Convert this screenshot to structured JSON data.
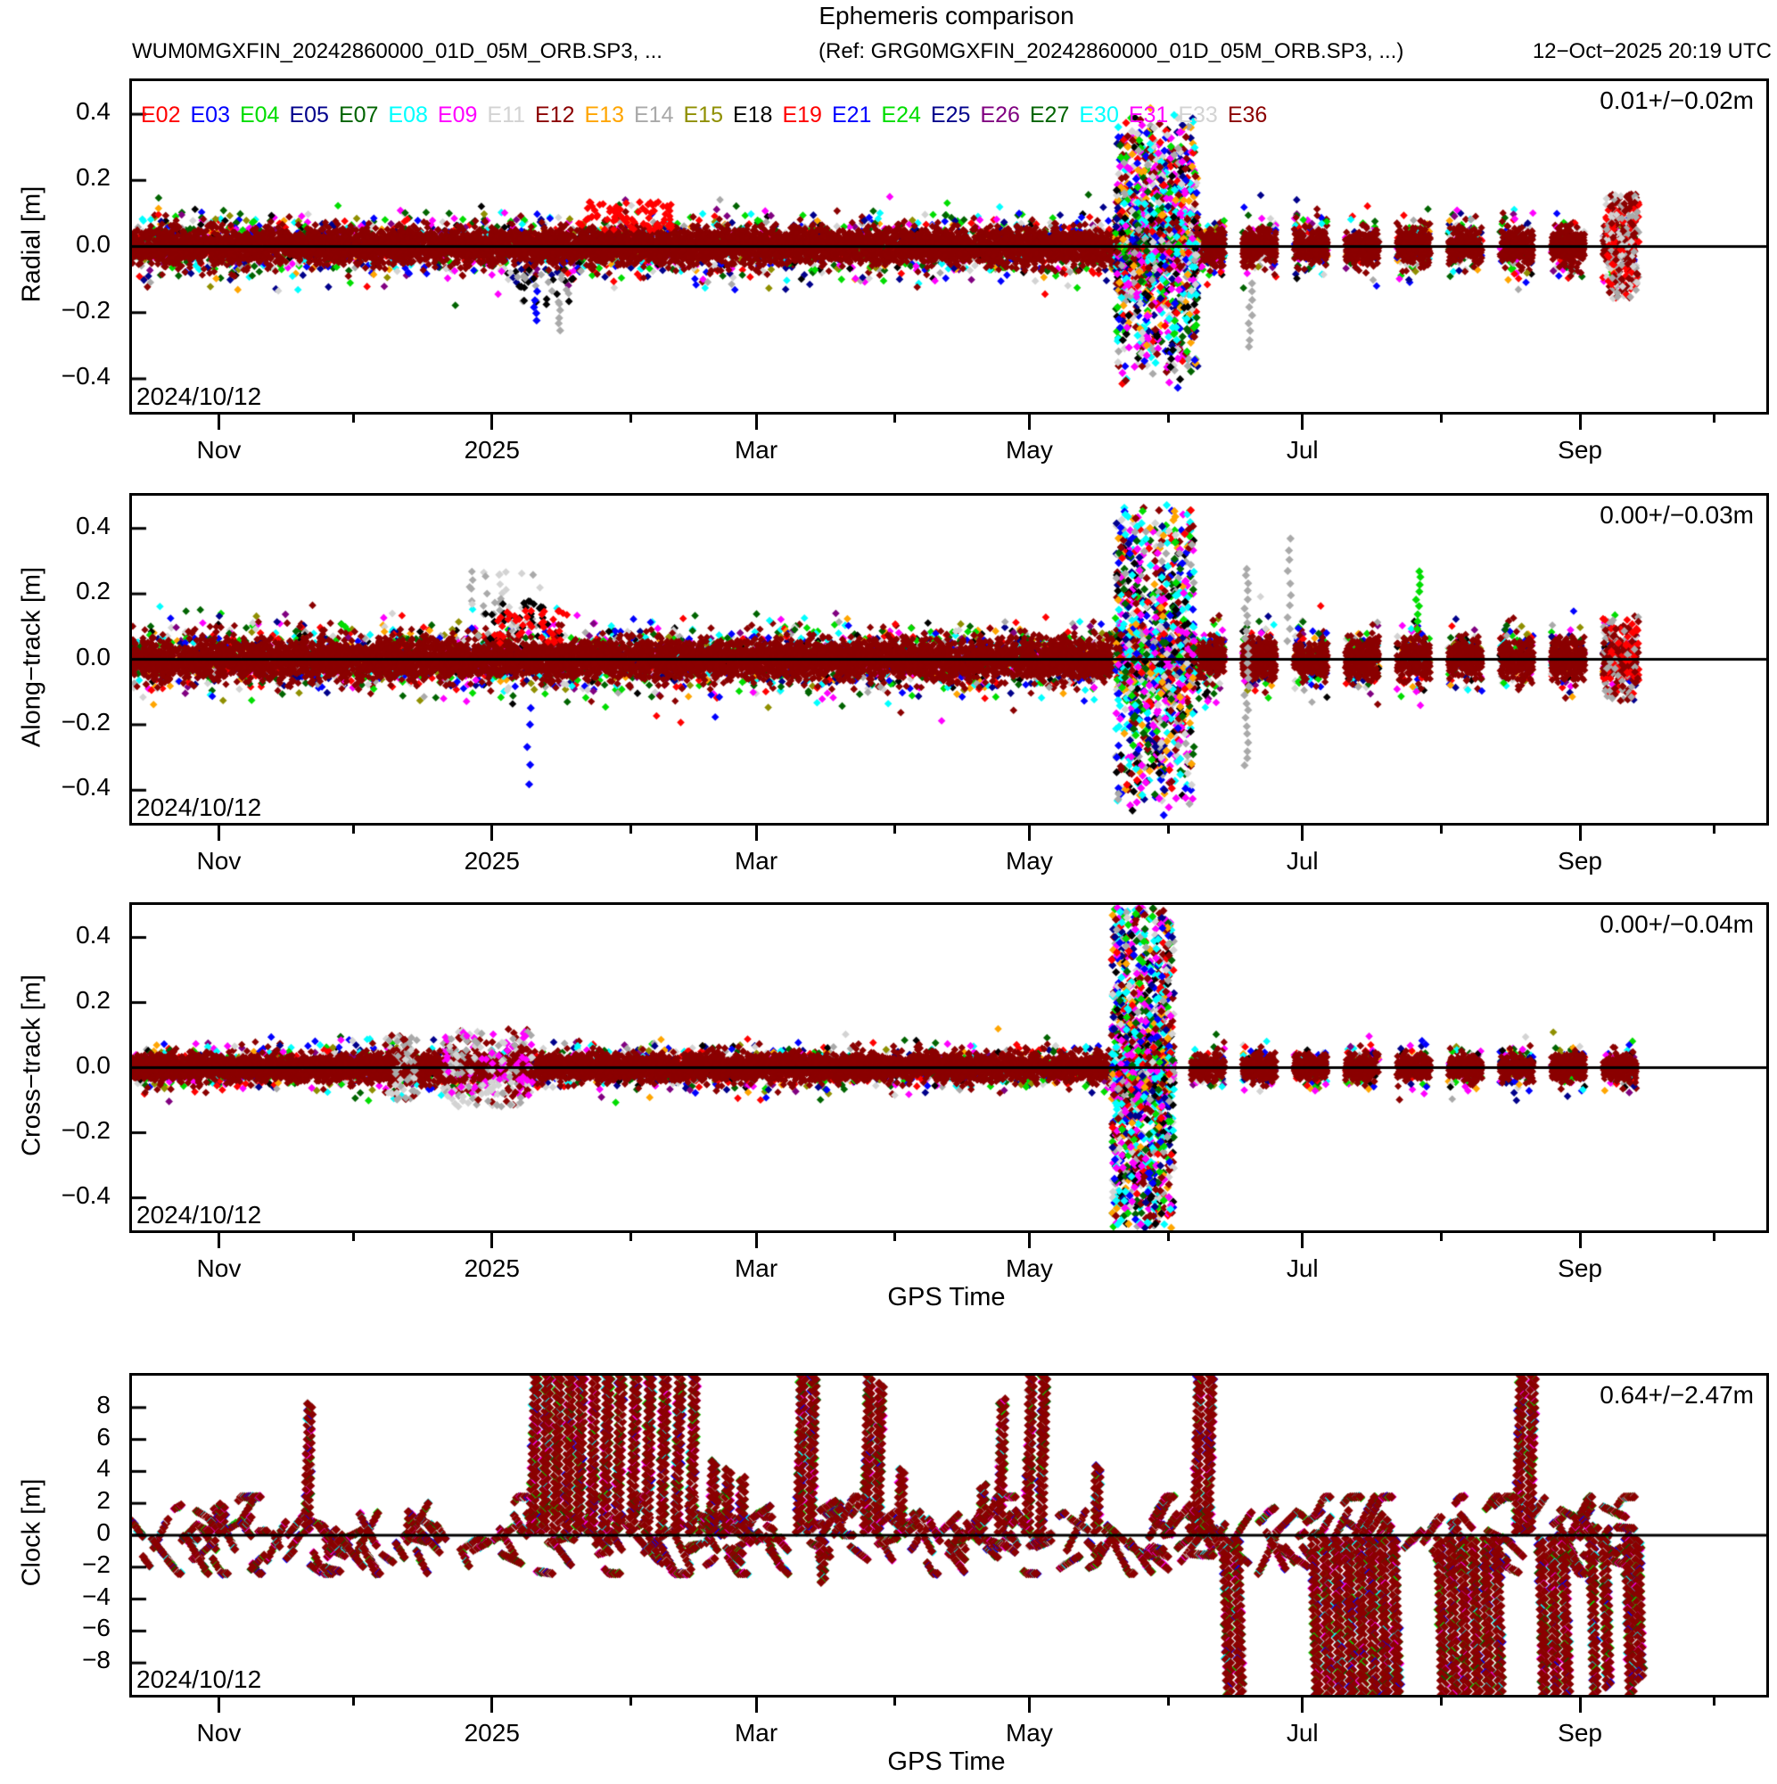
{
  "header": {
    "title": "Ephemeris comparison",
    "subtitle_left": "WUM0MGXFIN_20242860000_01D_05M_ORB.SP3, ...",
    "subtitle_ref": "(Ref: GRG0MGXFIN_20242860000_01D_05M_ORB.SP3, ...)",
    "timestamp": "12−Oct−2025 20:19 UTC"
  },
  "satellites": [
    {
      "id": "E02",
      "color": "#ff0000"
    },
    {
      "id": "E03",
      "color": "#0000ff"
    },
    {
      "id": "E04",
      "color": "#00dd00"
    },
    {
      "id": "E05",
      "color": "#00008b"
    },
    {
      "id": "E07",
      "color": "#006400"
    },
    {
      "id": "E08",
      "color": "#00ffff"
    },
    {
      "id": "E09",
      "color": "#ff00ff"
    },
    {
      "id": "E11",
      "color": "#d3d3d3"
    },
    {
      "id": "E12",
      "color": "#8b0000"
    },
    {
      "id": "E13",
      "color": "#ffa500"
    },
    {
      "id": "E14",
      "color": "#a9a9a9"
    },
    {
      "id": "E15",
      "color": "#8f8f00"
    },
    {
      "id": "E18",
      "color": "#000000"
    },
    {
      "id": "E19",
      "color": "#ff0000"
    },
    {
      "id": "E21",
      "color": "#0000ff"
    },
    {
      "id": "E24",
      "color": "#00dd00"
    },
    {
      "id": "E25",
      "color": "#00008b"
    },
    {
      "id": "E26",
      "color": "#800080"
    },
    {
      "id": "E27",
      "color": "#006400"
    },
    {
      "id": "E30",
      "color": "#00ffff"
    },
    {
      "id": "E31",
      "color": "#ff00ff"
    },
    {
      "id": "E33",
      "color": "#d3d3d3"
    },
    {
      "id": "E36",
      "color": "#8b0000"
    }
  ],
  "time_axis": {
    "start_date": "2024/10/12",
    "range_days": 365,
    "data_end_frac": 0.922,
    "ticks": [
      {
        "day": 20,
        "label": "Nov"
      },
      {
        "day": 50,
        "label": ""
      },
      {
        "day": 81,
        "label": "2025"
      },
      {
        "day": 112,
        "label": ""
      },
      {
        "day": 140,
        "label": "Mar"
      },
      {
        "day": 171,
        "label": ""
      },
      {
        "day": 201,
        "label": "May"
      },
      {
        "day": 232,
        "label": ""
      },
      {
        "day": 262,
        "label": "Jul"
      },
      {
        "day": 293,
        "label": ""
      },
      {
        "day": 324,
        "label": "Sep"
      },
      {
        "day": 354,
        "label": ""
      }
    ]
  },
  "chart_data": [
    {
      "type": "scatter",
      "ylabel": "Radial [m]",
      "xlabel": "",
      "stat": "0.01+/−0.02m",
      "date_annotation": "2024/10/12",
      "ylim": [
        -0.5,
        0.5
      ],
      "yticks": [
        {
          "v": 0.4,
          "label": "0.4"
        },
        {
          "v": 0.2,
          "label": "0.2"
        },
        {
          "v": 0.0,
          "label": "0.0"
        },
        {
          "v": -0.2,
          "label": "−0.2"
        },
        {
          "v": -0.4,
          "label": "−0.4"
        }
      ],
      "show_legend": true,
      "band": {
        "core_sigma": 0.027,
        "fringe_sigma": 0.048,
        "n_core": 9500,
        "n_fringe": 3800
      },
      "segmentation": {
        "start": 0.585,
        "period": 0.0315,
        "gap": 0.011
      },
      "anomalies": [
        {
          "kind": "cluster",
          "start": 0.272,
          "end": 0.33,
          "ymin": 0.05,
          "ymax": 0.135,
          "n": 70,
          "colors": [
            "#ff0000"
          ]
        },
        {
          "kind": "cluster",
          "start": 0.235,
          "end": 0.275,
          "ymin": -0.19,
          "ymax": -0.07,
          "n": 35,
          "colors": [
            "#000000",
            "#a9a9a9"
          ]
        },
        {
          "kind": "column",
          "at": 0.247,
          "ymin": -0.23,
          "ymax": -0.12,
          "n": 5,
          "color": "#0000ff"
        },
        {
          "kind": "column",
          "at": 0.262,
          "ymin": -0.26,
          "ymax": -0.15,
          "n": 5,
          "color": "#a9a9a9"
        },
        {
          "kind": "burst",
          "start": 0.602,
          "end": 0.652,
          "amp": 0.38,
          "n": 1400,
          "columns": 0
        },
        {
          "kind": "column",
          "at": 0.636,
          "ymin": -0.37,
          "ymax": -0.29,
          "n": 3,
          "color": "#000000"
        },
        {
          "kind": "column",
          "at": 0.6845,
          "ymin": -0.31,
          "ymax": -0.09,
          "n": 9,
          "color": "#a9a9a9"
        },
        {
          "kind": "cluster",
          "start": 0.902,
          "end": 0.922,
          "ymin": -0.16,
          "ymax": 0.16,
          "n": 240,
          "colors": [
            "#ff0000",
            "#8b0000",
            "#a9a9a9",
            "#d3d3d3"
          ]
        }
      ]
    },
    {
      "type": "scatter",
      "ylabel": "Along−track [m]",
      "xlabel": "",
      "stat": "0.00+/−0.03m",
      "date_annotation": "2024/10/12",
      "ylim": [
        -0.5,
        0.5
      ],
      "yticks": [
        {
          "v": 0.4,
          "label": "0.4"
        },
        {
          "v": 0.2,
          "label": "0.2"
        },
        {
          "v": 0.0,
          "label": "0.0"
        },
        {
          "v": -0.2,
          "label": "−0.2"
        },
        {
          "v": -0.4,
          "label": "−0.4"
        }
      ],
      "show_legend": false,
      "band": {
        "core_sigma": 0.03,
        "fringe_sigma": 0.052,
        "n_core": 9500,
        "n_fringe": 4200
      },
      "segmentation": {
        "start": 0.585,
        "period": 0.0315,
        "gap": 0.011
      },
      "anomalies": [
        {
          "kind": "cluster",
          "start": 0.205,
          "end": 0.25,
          "ymin": 0.07,
          "ymax": 0.27,
          "n": 45,
          "colors": [
            "#a9a9a9",
            "#d3d3d3"
          ]
        },
        {
          "kind": "cluster",
          "start": 0.215,
          "end": 0.255,
          "ymin": 0.06,
          "ymax": 0.18,
          "n": 30,
          "colors": [
            "#000000"
          ]
        },
        {
          "kind": "cluster",
          "start": 0.22,
          "end": 0.27,
          "ymin": 0.05,
          "ymax": 0.15,
          "n": 40,
          "colors": [
            "#ff0000"
          ]
        },
        {
          "kind": "column",
          "at": 0.243,
          "ymin": -0.39,
          "ymax": -0.1,
          "n": 5,
          "color": "#0000ff"
        },
        {
          "kind": "burst",
          "start": 0.602,
          "end": 0.65,
          "amp": 0.44,
          "n": 1300,
          "columns": 0
        },
        {
          "kind": "column",
          "at": 0.682,
          "ymin": -0.33,
          "ymax": 0.3,
          "n": 26,
          "color": "#a9a9a9"
        },
        {
          "kind": "column",
          "at": 0.708,
          "ymin": 0.05,
          "ymax": 0.4,
          "n": 10,
          "color": "#a9a9a9"
        },
        {
          "kind": "column",
          "at": 0.787,
          "ymin": 0.09,
          "ymax": 0.29,
          "n": 9,
          "color": "#00dd00"
        },
        {
          "kind": "cluster",
          "start": 0.9,
          "end": 0.922,
          "ymin": -0.13,
          "ymax": 0.13,
          "n": 150,
          "colors": [
            "#8b0000",
            "#a9a9a9",
            "#ff0000"
          ]
        }
      ]
    },
    {
      "type": "scatter",
      "ylabel": "Cross−track [m]",
      "xlabel": "GPS Time",
      "stat": "0.00+/−0.04m",
      "date_annotation": "2024/10/12",
      "ylim": [
        -0.5,
        0.5
      ],
      "yticks": [
        {
          "v": 0.4,
          "label": "0.4"
        },
        {
          "v": 0.2,
          "label": "0.2"
        },
        {
          "v": 0.0,
          "label": "0.0"
        },
        {
          "v": -0.2,
          "label": "−0.2"
        },
        {
          "v": -0.4,
          "label": "−0.4"
        }
      ],
      "show_legend": false,
      "band": {
        "core_sigma": 0.02,
        "fringe_sigma": 0.034,
        "n_core": 9000,
        "n_fringe": 3200
      },
      "segmentation": {
        "start": 0.585,
        "period": 0.0315,
        "gap": 0.011
      },
      "anomalies": [
        {
          "kind": "cluster",
          "start": 0.155,
          "end": 0.175,
          "ymin": -0.1,
          "ymax": 0.1,
          "n": 80,
          "colors": [
            "#a9a9a9",
            "#d3d3d3",
            "#8b0000"
          ]
        },
        {
          "kind": "cluster",
          "start": 0.19,
          "end": 0.245,
          "ymin": -0.12,
          "ymax": 0.12,
          "n": 250,
          "colors": [
            "#a9a9a9",
            "#d3d3d3",
            "#8b0000",
            "#ff00ff"
          ]
        },
        {
          "kind": "burst",
          "start": 0.6,
          "end": 0.637,
          "amp": 0.58,
          "n": 1800,
          "columns": 13
        }
      ]
    },
    {
      "type": "clock",
      "ylabel": "Clock [m]",
      "xlabel": "GPS Time",
      "stat": "0.64+/−2.47m",
      "date_annotation": "2024/10/12",
      "ylim": [
        -10,
        10
      ],
      "yticks": [
        {
          "v": 8,
          "label": "8"
        },
        {
          "v": 6,
          "label": "6"
        },
        {
          "v": 4,
          "label": "4"
        },
        {
          "v": 2,
          "label": "2"
        },
        {
          "v": 0,
          "label": "0"
        },
        {
          "v": -2,
          "label": "−2"
        },
        {
          "v": -4,
          "label": "−4"
        },
        {
          "v": -6,
          "label": "−6"
        },
        {
          "v": -8,
          "label": "−8"
        }
      ],
      "show_legend": false,
      "arcs": {
        "n": 300,
        "y_sigma": 1.0,
        "max_abs": 2.4,
        "len_min": 4,
        "len_max": 13
      },
      "spikes": [
        {
          "x": 0.055,
          "dir": 1,
          "h": 0.18
        },
        {
          "x": 0.107,
          "dir": 1,
          "h": 0.82
        },
        {
          "x": 0.17,
          "dir": 1,
          "h": 0.13
        },
        {
          "x": 0.245,
          "dir": 1,
          "h": 1
        },
        {
          "x": 0.252,
          "dir": 1,
          "h": 1
        },
        {
          "x": 0.259,
          "dir": 1,
          "h": 1
        },
        {
          "x": 0.266,
          "dir": 1,
          "h": 1
        },
        {
          "x": 0.273,
          "dir": 1,
          "h": 1
        },
        {
          "x": 0.281,
          "dir": 1,
          "h": 1
        },
        {
          "x": 0.289,
          "dir": 1,
          "h": 1
        },
        {
          "x": 0.297,
          "dir": 1,
          "h": 1
        },
        {
          "x": 0.306,
          "dir": 1,
          "h": 1
        },
        {
          "x": 0.315,
          "dir": 1,
          "h": 1
        },
        {
          "x": 0.324,
          "dir": 1,
          "h": 1
        },
        {
          "x": 0.333,
          "dir": 1,
          "h": 1
        },
        {
          "x": 0.342,
          "dir": 1,
          "h": 1
        },
        {
          "x": 0.355,
          "dir": 1,
          "h": 0.45
        },
        {
          "x": 0.364,
          "dir": 1,
          "h": 0.4
        },
        {
          "x": 0.373,
          "dir": 1,
          "h": 0.35
        },
        {
          "x": 0.408,
          "dir": 1,
          "h": 1
        },
        {
          "x": 0.415,
          "dir": 1,
          "h": 1
        },
        {
          "x": 0.422,
          "dir": -1,
          "h": 0.28
        },
        {
          "x": 0.449,
          "dir": 1,
          "h": 1
        },
        {
          "x": 0.456,
          "dir": 1,
          "h": 0.95
        },
        {
          "x": 0.47,
          "dir": 1,
          "h": 0.4
        },
        {
          "x": 0.52,
          "dir": 1,
          "h": 0.3
        },
        {
          "x": 0.531,
          "dir": 1,
          "h": 0.85
        },
        {
          "x": 0.548,
          "dir": 1,
          "h": 1
        },
        {
          "x": 0.556,
          "dir": 1,
          "h": 1
        },
        {
          "x": 0.59,
          "dir": 1,
          "h": 0.42
        },
        {
          "x": 0.651,
          "dir": 1,
          "h": 1
        },
        {
          "x": 0.658,
          "dir": 1,
          "h": 1
        },
        {
          "x": 0.669,
          "dir": -1,
          "h": 1
        },
        {
          "x": 0.676,
          "dir": -1,
          "h": 1
        },
        {
          "x": 0.723,
          "dir": -1,
          "h": 1
        },
        {
          "x": 0.73,
          "dir": -1,
          "h": 1
        },
        {
          "x": 0.737,
          "dir": -1,
          "h": 1
        },
        {
          "x": 0.744,
          "dir": -1,
          "h": 1
        },
        {
          "x": 0.751,
          "dir": -1,
          "h": 1
        },
        {
          "x": 0.758,
          "dir": -1,
          "h": 1
        },
        {
          "x": 0.765,
          "dir": -1,
          "h": 1
        },
        {
          "x": 0.772,
          "dir": -1,
          "h": 1
        },
        {
          "x": 0.8,
          "dir": -1,
          "h": 1
        },
        {
          "x": 0.807,
          "dir": -1,
          "h": 1
        },
        {
          "x": 0.814,
          "dir": -1,
          "h": 1
        },
        {
          "x": 0.821,
          "dir": -1,
          "h": 1
        },
        {
          "x": 0.828,
          "dir": -1,
          "h": 1
        },
        {
          "x": 0.835,
          "dir": -1,
          "h": 1
        },
        {
          "x": 0.848,
          "dir": 1,
          "h": 1
        },
        {
          "x": 0.855,
          "dir": 1,
          "h": 1
        },
        {
          "x": 0.862,
          "dir": -1,
          "h": 1
        },
        {
          "x": 0.869,
          "dir": -1,
          "h": 1
        },
        {
          "x": 0.876,
          "dir": -1,
          "h": 1
        },
        {
          "x": 0.893,
          "dir": -1,
          "h": 1
        },
        {
          "x": 0.901,
          "dir": -1,
          "h": 0.95
        },
        {
          "x": 0.915,
          "dir": -1,
          "h": 1
        },
        {
          "x": 0.921,
          "dir": -1,
          "h": 0.9
        }
      ]
    }
  ]
}
